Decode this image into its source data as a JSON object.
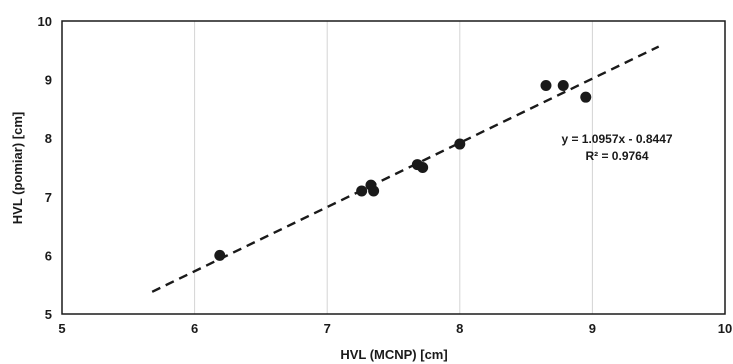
{
  "chart_data": {
    "type": "scatter",
    "title": "",
    "xlabel": "HVL (MCNP) [cm]",
    "ylabel": "HVL (pomiar) [cm]",
    "xlim": [
      5,
      10
    ],
    "ylim": [
      5,
      10
    ],
    "xticks": [
      5,
      6,
      7,
      8,
      9,
      10
    ],
    "yticks": [
      5,
      6,
      7,
      8,
      9,
      10
    ],
    "grid": "vertical",
    "legend": "none",
    "series": [
      {
        "points": [
          {
            "x": 6.19,
            "y": 6.0
          },
          {
            "x": 7.26,
            "y": 7.1
          },
          {
            "x": 7.33,
            "y": 7.2
          },
          {
            "x": 7.35,
            "y": 7.1
          },
          {
            "x": 7.68,
            "y": 7.55
          },
          {
            "x": 7.72,
            "y": 7.5
          },
          {
            "x": 8.0,
            "y": 7.9
          },
          {
            "x": 8.65,
            "y": 8.9
          },
          {
            "x": 8.78,
            "y": 8.9
          },
          {
            "x": 8.95,
            "y": 8.7
          }
        ]
      }
    ],
    "trendline": {
      "type": "linear",
      "slope": 1.0957,
      "intercept": -0.8447,
      "x_range": [
        5.68,
        9.5
      ],
      "equation_label": "y = 1.0957x - 0.8447",
      "r2_label": "R² = 0.9764"
    },
    "colors": {
      "points": "#1a1a1a",
      "trendline": "#1a1a1a",
      "grid": "#d4d4d4"
    }
  }
}
